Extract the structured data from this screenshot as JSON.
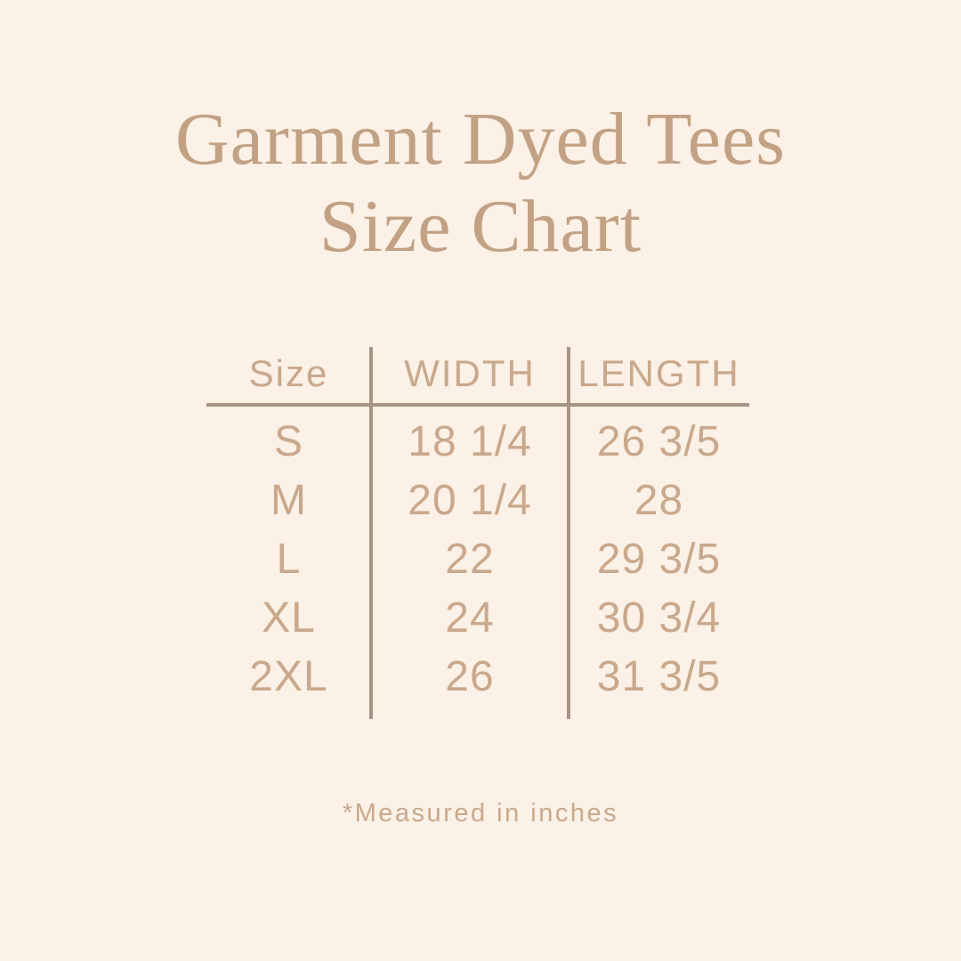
{
  "title": {
    "line1": "Garment Dyed Tees",
    "line2": "Size Chart"
  },
  "footnote": "*Measured in inches",
  "colors": {
    "background": "#fbf1e6",
    "title_text": "#c2a184",
    "table_text": "#c9a88c",
    "divider": "#a79485"
  },
  "chart_data": {
    "type": "table",
    "title": "Garment Dyed Tees Size Chart",
    "columns": [
      "Size",
      "WIDTH",
      "LENGTH"
    ],
    "rows": [
      [
        "S",
        "18 1/4",
        "26 3/5"
      ],
      [
        "M",
        "20 1/4",
        "28"
      ],
      [
        "L",
        "22",
        "29 3/5"
      ],
      [
        "XL",
        "24",
        "30 3/4"
      ],
      [
        "2XL",
        "26",
        "31 3/5"
      ]
    ],
    "footnote": "*Measured in inches",
    "layout": {
      "grid": "two vertical column dividers, one horizontal rule under header",
      "alignment": "all cells centered"
    }
  }
}
